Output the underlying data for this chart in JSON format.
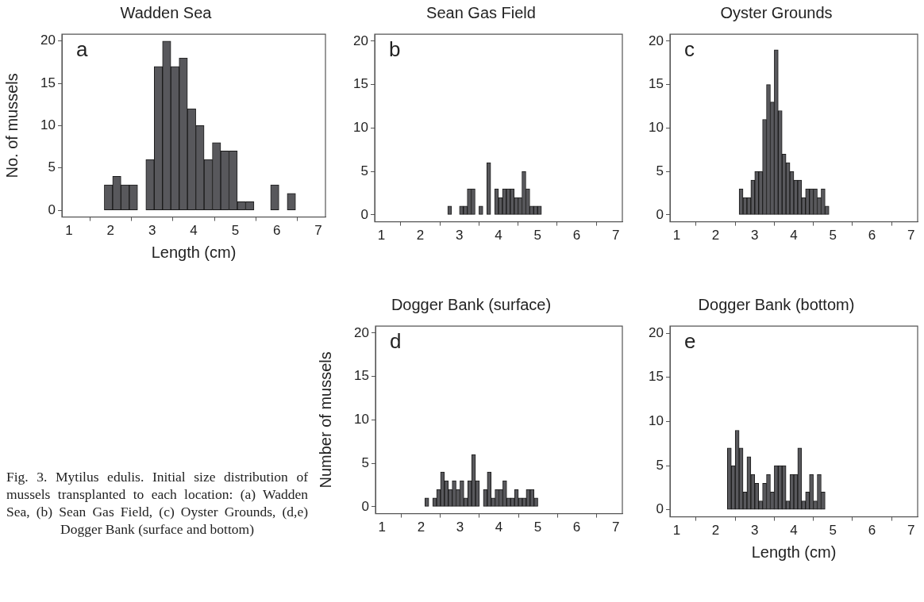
{
  "chart_data": [
    {
      "type": "histogram",
      "title": "Wadden Sea",
      "xlabel": "Length (cm)",
      "ylabel": "No. of mussels",
      "annotations": [
        "a"
      ],
      "color": "#58585c",
      "xlim": [
        0.83,
        7.17
      ],
      "ylim": [
        -0.8,
        20.8
      ],
      "xticks": [
        1,
        2,
        3,
        4,
        5,
        6,
        7
      ],
      "yticks": [
        0,
        5,
        10,
        15,
        20
      ],
      "bins": [
        1.85,
        2.05,
        2.25,
        2.45,
        2.65,
        2.85,
        3.05,
        3.25,
        3.45,
        3.65,
        3.85,
        4.05,
        4.25,
        4.45,
        4.65,
        4.85,
        5.05,
        5.25,
        5.45,
        5.65,
        5.85,
        6.05,
        6.25,
        6.45
      ],
      "values": [
        3,
        4,
        3,
        3,
        0,
        6,
        17,
        20,
        17,
        18,
        12,
        10,
        6,
        8,
        7,
        7,
        1,
        1,
        0,
        0,
        3,
        0,
        2
      ]
    },
    {
      "type": "histogram",
      "title": "Sean Gas Field",
      "annotations": [
        "b"
      ],
      "color": "#58585c",
      "xlim": [
        0.83,
        7.17
      ],
      "ylim": [
        -0.8,
        20.8
      ],
      "xticks": [
        1,
        2,
        3,
        4,
        5,
        6,
        7
      ],
      "yticks": [
        0,
        5,
        10,
        15,
        20
      ],
      "bins": [
        2.7,
        2.8,
        2.9,
        3.0,
        3.1,
        3.2,
        3.3,
        3.4,
        3.5,
        3.6,
        3.7,
        3.8,
        3.9,
        4.0,
        4.1,
        4.2,
        4.3,
        4.4,
        4.5,
        4.6,
        4.7,
        4.8,
        4.9,
        5.0,
        5.1
      ],
      "values": [
        1,
        0,
        0,
        1,
        1,
        3,
        3,
        0,
        1,
        0,
        6,
        0,
        3,
        2,
        3,
        3,
        3,
        2,
        2,
        5,
        3,
        1,
        1,
        1
      ]
    },
    {
      "type": "histogram",
      "title": "Oyster Grounds",
      "annotations": [
        "c"
      ],
      "color": "#58585c",
      "xlim": [
        0.83,
        7.17
      ],
      "ylim": [
        -0.8,
        20.8
      ],
      "xticks": [
        1,
        2,
        3,
        4,
        5,
        6,
        7
      ],
      "yticks": [
        0,
        5,
        10,
        15,
        20
      ],
      "bins": [
        2.6,
        2.7,
        2.8,
        2.9,
        3.0,
        3.1,
        3.2,
        3.3,
        3.4,
        3.5,
        3.6,
        3.7,
        3.8,
        3.9,
        4.0,
        4.1,
        4.2,
        4.3,
        4.4,
        4.5,
        4.6,
        4.7,
        4.8,
        4.9
      ],
      "values": [
        3,
        2,
        2,
        4,
        5,
        5,
        11,
        15,
        13,
        19,
        12,
        7,
        6,
        5,
        4,
        4,
        2,
        3,
        3,
        3,
        2,
        3,
        1
      ]
    },
    {
      "type": "histogram",
      "title": "Dogger Bank (surface)",
      "ylabel": "Number of mussels",
      "annotations": [
        "d"
      ],
      "color": "#58585c",
      "xlim": [
        0.83,
        7.17
      ],
      "ylim": [
        -0.8,
        20.8
      ],
      "xticks": [
        1,
        2,
        3,
        4,
        5,
        6,
        7
      ],
      "yticks": [
        0,
        5,
        10,
        15,
        20
      ],
      "bins": [
        2.1,
        2.2,
        2.3,
        2.4,
        2.5,
        2.6,
        2.7,
        2.8,
        2.9,
        3.0,
        3.1,
        3.2,
        3.3,
        3.4,
        3.5,
        3.6,
        3.7,
        3.8,
        3.9,
        4.0,
        4.1,
        4.2,
        4.3,
        4.4,
        4.5,
        4.6,
        4.7,
        4.8,
        4.9,
        5.0
      ],
      "values": [
        1,
        0,
        1,
        2,
        4,
        3,
        2,
        3,
        2,
        3,
        1,
        3,
        6,
        3,
        0,
        2,
        4,
        1,
        2,
        2,
        3,
        1,
        1,
        2,
        1,
        1,
        2,
        2,
        1
      ]
    },
    {
      "type": "histogram",
      "title": "Dogger Bank (bottom)",
      "xlabel": "Length (cm)",
      "annotations": [
        "e"
      ],
      "color": "#58585c",
      "xlim": [
        0.83,
        7.17
      ],
      "ylim": [
        -0.8,
        20.8
      ],
      "xticks": [
        1,
        2,
        3,
        4,
        5,
        6,
        7
      ],
      "yticks": [
        0,
        5,
        10,
        15,
        20
      ],
      "bins": [
        2.3,
        2.4,
        2.5,
        2.6,
        2.7,
        2.8,
        2.9,
        3.0,
        3.1,
        3.2,
        3.3,
        3.4,
        3.5,
        3.6,
        3.7,
        3.8,
        3.9,
        4.0,
        4.1,
        4.2,
        4.3,
        4.4,
        4.5,
        4.6,
        4.7,
        4.8
      ],
      "values": [
        7,
        5,
        9,
        7,
        2,
        6,
        4,
        3,
        1,
        3,
        4,
        2,
        5,
        5,
        5,
        1,
        4,
        4,
        7,
        1,
        2,
        4,
        1,
        4,
        2
      ]
    },
    {
      "type": "other",
      "annotations": [
        "Fig. 3. Mytilus edulis. Initial size distribution of mussels transplanted to each location: (a) Wadden Sea, (b) Sean Gas Field, (c) Oyster Grounds, (d,e) Dogger Bank (surface and bottom)"
      ]
    }
  ]
}
